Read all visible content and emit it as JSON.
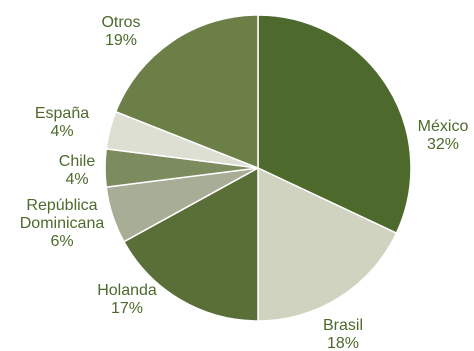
{
  "chart_data": {
    "type": "pie",
    "start_angle_deg": 0,
    "direction": "clockwise",
    "slices": [
      {
        "label": "México",
        "pct_label": "32%",
        "value": 32,
        "color": "#4d6a2c"
      },
      {
        "label": "Brasil",
        "pct_label": "18%",
        "value": 18,
        "color": "#d0d3c0"
      },
      {
        "label": "Holanda",
        "pct_label": "17%",
        "value": 17,
        "color": "#5a6f37"
      },
      {
        "label": "República Dominicana",
        "label_lines": [
          "República",
          "Dominicana"
        ],
        "pct_label": "6%",
        "value": 6,
        "color": "#a8ad96"
      },
      {
        "label": "Chile",
        "pct_label": "4%",
        "value": 4,
        "color": "#7d8c5e"
      },
      {
        "label": "España",
        "pct_label": "4%",
        "value": 4,
        "color": "#dedfd3"
      },
      {
        "label": "Otros",
        "pct_label": "19%",
        "value": 19,
        "color": "#6b7f47"
      }
    ],
    "label_color": "#4d6a2c"
  }
}
